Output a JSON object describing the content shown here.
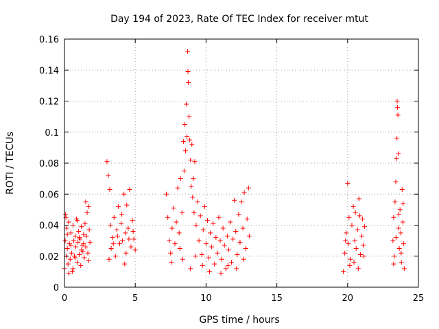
{
  "chart_data": {
    "type": "scatter",
    "title": "Day 194 of 2023, Rate Of TEC Index for receiver mtut",
    "xlabel": "GPS time / hours",
    "ylabel": "ROTI / TECUs",
    "xlim": [
      0,
      25
    ],
    "ylim": [
      0,
      0.16
    ],
    "xticks": [
      0,
      5,
      10,
      15,
      20,
      25
    ],
    "yticks": [
      0,
      0.02,
      0.04,
      0.06,
      0.08,
      0.1,
      0.12,
      0.14,
      0.16
    ],
    "xtick_labels": [
      "0",
      "5",
      "10",
      "15",
      "20",
      "25"
    ],
    "ytick_labels": [
      "0",
      "0.02",
      "0.04",
      "0.06",
      "0.08",
      "0.1",
      "0.12",
      "0.14",
      "0.16"
    ],
    "grid": true,
    "marker": "+",
    "color": "#ff0000",
    "series": [
      {
        "points": [
          [
            0.0,
            0.012
          ],
          [
            0.05,
            0.03
          ],
          [
            0.1,
            0.045
          ],
          [
            0.12,
            0.02
          ],
          [
            0.15,
            0.038
          ],
          [
            0.2,
            0.025
          ],
          [
            0.25,
            0.015
          ],
          [
            0.3,
            0.042
          ],
          [
            0.35,
            0.028
          ],
          [
            0.4,
            0.018
          ],
          [
            0.45,
            0.035
          ],
          [
            0.5,
            0.022
          ],
          [
            0.55,
            0.01
          ],
          [
            0.6,
            0.04
          ],
          [
            0.65,
            0.03
          ],
          [
            0.7,
            0.02
          ],
          [
            0.75,
            0.033
          ],
          [
            0.8,
            0.026
          ],
          [
            0.85,
            0.044
          ],
          [
            0.9,
            0.016
          ],
          [
            0.95,
            0.029
          ],
          [
            1.0,
            0.036
          ],
          [
            1.05,
            0.021
          ],
          [
            1.1,
            0.031
          ],
          [
            1.15,
            0.014
          ],
          [
            1.2,
            0.039
          ],
          [
            1.25,
            0.027
          ],
          [
            1.3,
            0.023
          ],
          [
            1.35,
            0.034
          ],
          [
            1.4,
            0.019
          ],
          [
            1.45,
            0.041
          ],
          [
            1.5,
            0.026
          ],
          [
            1.55,
            0.033
          ],
          [
            1.6,
            0.048
          ],
          [
            1.65,
            0.022
          ],
          [
            1.7,
            0.052
          ],
          [
            1.75,
            0.037
          ],
          [
            1.8,
            0.029
          ],
          [
            0.08,
            0.047
          ],
          [
            0.3,
            0.009
          ],
          [
            0.6,
            0.012
          ],
          [
            0.9,
            0.043
          ],
          [
            1.2,
            0.024
          ],
          [
            1.5,
            0.055
          ],
          [
            1.7,
            0.017
          ],
          [
            0.2,
            0.034
          ],
          [
            0.45,
            0.027
          ],
          [
            0.75,
            0.019
          ],
          [
            1.05,
            0.032
          ],
          [
            1.35,
            0.028
          ],
          [
            3.0,
            0.081
          ],
          [
            3.1,
            0.072
          ],
          [
            3.2,
            0.063
          ],
          [
            3.25,
            0.04
          ],
          [
            3.3,
            0.025
          ],
          [
            3.4,
            0.032
          ],
          [
            3.5,
            0.045
          ],
          [
            3.6,
            0.02
          ],
          [
            3.7,
            0.037
          ],
          [
            3.8,
            0.052
          ],
          [
            3.9,
            0.028
          ],
          [
            4.0,
            0.041
          ],
          [
            4.1,
            0.03
          ],
          [
            4.2,
            0.06
          ],
          [
            4.3,
            0.035
          ],
          [
            4.35,
            0.022
          ],
          [
            4.4,
            0.053
          ],
          [
            4.5,
            0.038
          ],
          [
            4.6,
            0.063
          ],
          [
            4.7,
            0.026
          ],
          [
            4.8,
            0.043
          ],
          [
            4.9,
            0.031
          ],
          [
            5.0,
            0.024
          ],
          [
            3.15,
            0.018
          ],
          [
            3.45,
            0.028
          ],
          [
            3.75,
            0.033
          ],
          [
            4.05,
            0.047
          ],
          [
            4.25,
            0.015
          ],
          [
            4.55,
            0.031
          ],
          [
            4.85,
            0.036
          ],
          [
            7.2,
            0.06
          ],
          [
            7.3,
            0.045
          ],
          [
            7.4,
            0.03
          ],
          [
            7.5,
            0.022
          ],
          [
            7.6,
            0.038
          ],
          [
            7.7,
            0.051
          ],
          [
            7.8,
            0.028
          ],
          [
            7.9,
            0.042
          ],
          [
            8.0,
            0.064
          ],
          [
            8.1,
            0.035
          ],
          [
            8.2,
            0.07
          ],
          [
            8.3,
            0.048
          ],
          [
            8.4,
            0.094
          ],
          [
            8.45,
            0.075
          ],
          [
            8.5,
            0.105
          ],
          [
            8.55,
            0.088
          ],
          [
            8.6,
            0.118
          ],
          [
            8.65,
            0.097
          ],
          [
            8.7,
            0.152
          ],
          [
            8.72,
            0.139
          ],
          [
            8.75,
            0.132
          ],
          [
            8.8,
            0.11
          ],
          [
            8.85,
            0.095
          ],
          [
            8.9,
            0.082
          ],
          [
            8.95,
            0.065
          ],
          [
            9.0,
            0.092
          ],
          [
            9.05,
            0.058
          ],
          [
            9.1,
            0.07
          ],
          [
            9.15,
            0.048
          ],
          [
            9.2,
            0.081
          ],
          [
            9.3,
            0.04
          ],
          [
            9.4,
            0.055
          ],
          [
            9.5,
            0.03
          ],
          [
            9.6,
            0.046
          ],
          [
            9.7,
            0.021
          ],
          [
            9.8,
            0.037
          ],
          [
            9.9,
            0.052
          ],
          [
            10.0,
            0.028
          ],
          [
            10.1,
            0.043
          ],
          [
            10.2,
            0.019
          ],
          [
            10.3,
            0.035
          ],
          [
            10.4,
            0.026
          ],
          [
            10.5,
            0.041
          ],
          [
            10.6,
            0.015
          ],
          [
            10.7,
            0.032
          ],
          [
            10.8,
            0.022
          ],
          [
            10.9,
            0.045
          ],
          [
            11.0,
            0.03
          ],
          [
            11.1,
            0.018
          ],
          [
            11.2,
            0.038
          ],
          [
            11.3,
            0.027
          ],
          [
            11.4,
            0.012
          ],
          [
            11.5,
            0.033
          ],
          [
            11.6,
            0.024
          ],
          [
            11.7,
            0.042
          ],
          [
            11.8,
            0.016
          ],
          [
            11.9,
            0.031
          ],
          [
            12.0,
            0.056
          ],
          [
            12.1,
            0.036
          ],
          [
            12.2,
            0.021
          ],
          [
            12.3,
            0.047
          ],
          [
            12.4,
            0.029
          ],
          [
            12.5,
            0.055
          ],
          [
            12.6,
            0.038
          ],
          [
            12.7,
            0.061
          ],
          [
            12.8,
            0.025
          ],
          [
            12.9,
            0.044
          ],
          [
            13.0,
            0.064
          ],
          [
            13.05,
            0.033
          ],
          [
            7.55,
            0.016
          ],
          [
            8.15,
            0.025
          ],
          [
            8.35,
            0.018
          ],
          [
            8.9,
            0.012
          ],
          [
            9.25,
            0.02
          ],
          [
            9.75,
            0.014
          ],
          [
            10.25,
            0.01
          ],
          [
            11.05,
            0.009
          ],
          [
            11.55,
            0.014
          ],
          [
            12.15,
            0.012
          ],
          [
            12.65,
            0.018
          ],
          [
            19.7,
            0.01
          ],
          [
            19.8,
            0.022
          ],
          [
            19.9,
            0.035
          ],
          [
            20.0,
            0.067
          ],
          [
            20.05,
            0.028
          ],
          [
            20.1,
            0.045
          ],
          [
            20.2,
            0.018
          ],
          [
            20.3,
            0.04
          ],
          [
            20.4,
            0.052
          ],
          [
            20.5,
            0.03
          ],
          [
            20.6,
            0.025
          ],
          [
            20.7,
            0.037
          ],
          [
            20.8,
            0.057
          ],
          [
            20.85,
            0.046
          ],
          [
            20.9,
            0.021
          ],
          [
            21.0,
            0.033
          ],
          [
            21.05,
            0.044
          ],
          [
            21.1,
            0.027
          ],
          [
            21.2,
            0.039
          ],
          [
            20.15,
            0.014
          ],
          [
            20.45,
            0.016
          ],
          [
            20.75,
            0.012
          ],
          [
            21.15,
            0.02
          ],
          [
            19.85,
            0.03
          ],
          [
            20.55,
            0.048
          ],
          [
            23.2,
            0.03
          ],
          [
            23.25,
            0.045
          ],
          [
            23.3,
            0.02
          ],
          [
            23.35,
            0.055
          ],
          [
            23.4,
            0.068
          ],
          [
            23.45,
            0.083
          ],
          [
            23.48,
            0.096
          ],
          [
            23.5,
            0.12
          ],
          [
            23.52,
            0.116
          ],
          [
            23.55,
            0.111
          ],
          [
            23.58,
            0.086
          ],
          [
            23.6,
            0.038
          ],
          [
            23.65,
            0.025
          ],
          [
            23.7,
            0.05
          ],
          [
            23.75,
            0.035
          ],
          [
            23.8,
            0.016
          ],
          [
            23.85,
            0.063
          ],
          [
            23.9,
            0.042
          ],
          [
            23.95,
            0.028
          ],
          [
            24.0,
            0.012
          ],
          [
            23.25,
            0.015
          ],
          [
            23.42,
            0.032
          ],
          [
            23.62,
            0.047
          ],
          [
            23.78,
            0.022
          ],
          [
            23.92,
            0.054
          ]
        ]
      }
    ]
  }
}
